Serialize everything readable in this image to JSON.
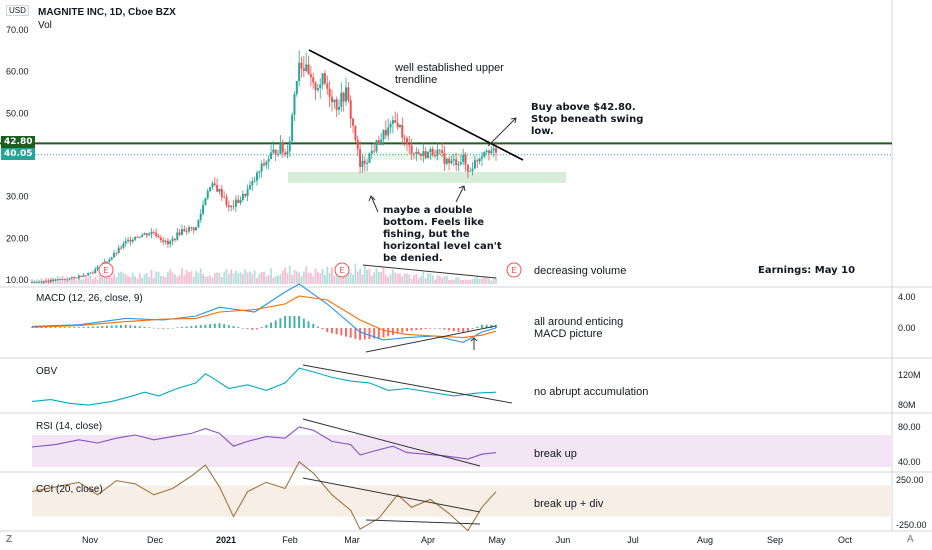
{
  "header": {
    "currency": "USD",
    "symbol": "MAGNITE INC, 1D, Cboe BZX",
    "vol_label": "Vol"
  },
  "price_tags": [
    {
      "value": "42.80",
      "color": "#1b5e20"
    },
    {
      "value": "40.05",
      "color": "#26a69a"
    }
  ],
  "annotations": {
    "trendline": "well established upper\ntrendline",
    "buy": "Buy above $42.80.\nStop beneath swing\nlow.",
    "double_bottom": "maybe a double\nbottom. Feels like\nfishing, but the\nhorizontal level can't\nbe denied.",
    "volume": "decreasing volume",
    "earnings": "Earnings: May 10",
    "macd": "all around enticing\nMACD picture",
    "obv": "no abrupt accumulation",
    "rsi": "break up",
    "cci": "break up + div"
  },
  "earnings_marker": "E",
  "footer": {
    "left_icon": "Z",
    "right_icon": "A"
  },
  "colors": {
    "up": "#26a69a",
    "down": "#ef5350",
    "level": "#1b5e20",
    "obv": "#00acc1",
    "macd_line": "#2196f3",
    "signal_line": "#ff6d00",
    "rsi_line": "#7e57c2",
    "rsi_band": "#f3e5f5",
    "cci_line": "#a1753f",
    "cci_band": "#f7efe6",
    "support_zone": "#c8e6c9"
  },
  "chart_data": {
    "type": "candlestick",
    "title": "MAGNITE INC, 1D, Cboe BZX",
    "x_ticks": [
      "Nov",
      "Dec",
      "2021",
      "Feb",
      "Mar",
      "Apr",
      "May",
      "Jun",
      "Jul",
      "Aug",
      "Sep",
      "Oct"
    ],
    "earnings_dates": [
      "Nov",
      "Feb",
      "May"
    ],
    "price_axis": {
      "ticks": [
        10,
        20,
        30,
        40,
        50,
        60,
        70
      ],
      "range": [
        8,
        72
      ]
    },
    "horizontal_level": 42.8,
    "last_price": 40.05,
    "price_path": [
      [
        0,
        9.5
      ],
      [
        8,
        9.8
      ],
      [
        18,
        10.5
      ],
      [
        26,
        12
      ],
      [
        34,
        15.5
      ],
      [
        40,
        19
      ],
      [
        44,
        20.5
      ],
      [
        52,
        21.5
      ],
      [
        58,
        18.5
      ],
      [
        64,
        22
      ],
      [
        70,
        22.5
      ],
      [
        72,
        26
      ],
      [
        75,
        32
      ],
      [
        78,
        32.5
      ],
      [
        82,
        30
      ],
      [
        84,
        27
      ],
      [
        90,
        30
      ],
      [
        94,
        33
      ],
      [
        98,
        37
      ],
      [
        102,
        40
      ],
      [
        106,
        42
      ],
      [
        108,
        40
      ],
      [
        110,
        44
      ],
      [
        112,
        55
      ],
      [
        114,
        63
      ],
      [
        117,
        60
      ],
      [
        120,
        56
      ],
      [
        124,
        58
      ],
      [
        130,
        52
      ],
      [
        134,
        55
      ],
      [
        138,
        44
      ],
      [
        140,
        37
      ],
      [
        144,
        40
      ],
      [
        150,
        45
      ],
      [
        156,
        48
      ],
      [
        160,
        42
      ],
      [
        166,
        40
      ],
      [
        172,
        41
      ],
      [
        178,
        38
      ],
      [
        184,
        39
      ],
      [
        186,
        36
      ],
      [
        190,
        39
      ],
      [
        194,
        42
      ],
      [
        198,
        40.05
      ]
    ],
    "volume_path": [
      [
        0,
        1.2
      ],
      [
        20,
        1.5
      ],
      [
        40,
        2.2
      ],
      [
        56,
        2.6
      ],
      [
        70,
        3.2
      ],
      [
        80,
        2.6
      ],
      [
        95,
        2.4
      ],
      [
        105,
        2.7
      ],
      [
        112,
        3.4
      ],
      [
        120,
        2.8
      ],
      [
        140,
        3.5
      ],
      [
        160,
        2.3
      ],
      [
        180,
        1.6
      ],
      [
        198,
        1.3
      ]
    ],
    "macd": {
      "name": "MACD (12, 26, close, 9)",
      "axis_ticks": [
        "4.00",
        "0.00"
      ],
      "macd_path": [
        [
          0,
          0.2
        ],
        [
          20,
          0.4
        ],
        [
          40,
          1.2
        ],
        [
          56,
          1.0
        ],
        [
          70,
          1.5
        ],
        [
          80,
          2.6
        ],
        [
          95,
          2.0
        ],
        [
          108,
          4.5
        ],
        [
          114,
          5.5
        ],
        [
          126,
          3.0
        ],
        [
          140,
          -0.5
        ],
        [
          150,
          -1.5
        ],
        [
          160,
          -1.2
        ],
        [
          172,
          -1.0
        ],
        [
          184,
          -1.8
        ],
        [
          192,
          -0.5
        ],
        [
          198,
          0.0
        ]
      ],
      "signal_path": [
        [
          0,
          0.1
        ],
        [
          20,
          0.3
        ],
        [
          40,
          0.8
        ],
        [
          56,
          1.1
        ],
        [
          70,
          1.2
        ],
        [
          80,
          2.0
        ],
        [
          95,
          2.3
        ],
        [
          108,
          3.0
        ],
        [
          114,
          4.0
        ],
        [
          126,
          3.5
        ],
        [
          140,
          1.0
        ],
        [
          150,
          -0.3
        ],
        [
          160,
          -0.8
        ],
        [
          172,
          -1.0
        ],
        [
          184,
          -1.2
        ],
        [
          192,
          -0.9
        ],
        [
          198,
          -0.4
        ]
      ]
    },
    "obv": {
      "name": "OBV",
      "axis_ticks": [
        "120M",
        "80M"
      ],
      "path": [
        [
          0,
          86
        ],
        [
          8,
          88
        ],
        [
          16,
          84
        ],
        [
          24,
          82
        ],
        [
          34,
          86
        ],
        [
          40,
          90
        ],
        [
          48,
          96
        ],
        [
          54,
          92
        ],
        [
          62,
          100
        ],
        [
          70,
          106
        ],
        [
          74,
          116
        ],
        [
          78,
          110
        ],
        [
          84,
          100
        ],
        [
          92,
          104
        ],
        [
          100,
          98
        ],
        [
          108,
          106
        ],
        [
          114,
          122
        ],
        [
          120,
          118
        ],
        [
          128,
          112
        ],
        [
          136,
          108
        ],
        [
          144,
          106
        ],
        [
          152,
          98
        ],
        [
          160,
          100
        ],
        [
          170,
          96
        ],
        [
          180,
          92
        ],
        [
          190,
          95
        ],
        [
          198,
          96
        ]
      ]
    },
    "rsi": {
      "name": "RSI (14, close)",
      "axis_ticks": [
        "80.00",
        "40.00"
      ],
      "band": [
        30,
        70
      ],
      "path": [
        [
          0,
          55
        ],
        [
          10,
          58
        ],
        [
          20,
          64
        ],
        [
          28,
          60
        ],
        [
          36,
          66
        ],
        [
          44,
          70
        ],
        [
          52,
          64
        ],
        [
          60,
          68
        ],
        [
          68,
          72
        ],
        [
          74,
          78
        ],
        [
          80,
          72
        ],
        [
          86,
          56
        ],
        [
          92,
          62
        ],
        [
          100,
          68
        ],
        [
          108,
          66
        ],
        [
          114,
          80
        ],
        [
          120,
          76
        ],
        [
          128,
          62
        ],
        [
          136,
          58
        ],
        [
          140,
          45
        ],
        [
          146,
          50
        ],
        [
          154,
          56
        ],
        [
          160,
          48
        ],
        [
          168,
          46
        ],
        [
          176,
          44
        ],
        [
          186,
          40
        ],
        [
          192,
          46
        ],
        [
          198,
          48
        ]
      ]
    },
    "cci": {
      "name": "CCI (20, close)",
      "axis_ticks": [
        "250.00",
        "-250.00"
      ],
      "band": [
        -100,
        100
      ],
      "path": [
        [
          0,
          60
        ],
        [
          10,
          90
        ],
        [
          20,
          120
        ],
        [
          28,
          40
        ],
        [
          36,
          130
        ],
        [
          44,
          110
        ],
        [
          52,
          40
        ],
        [
          60,
          80
        ],
        [
          68,
          160
        ],
        [
          74,
          230
        ],
        [
          80,
          90
        ],
        [
          86,
          -100
        ],
        [
          92,
          60
        ],
        [
          100,
          120
        ],
        [
          108,
          80
        ],
        [
          114,
          250
        ],
        [
          120,
          180
        ],
        [
          128,
          40
        ],
        [
          136,
          -60
        ],
        [
          140,
          -180
        ],
        [
          148,
          -110
        ],
        [
          156,
          40
        ],
        [
          162,
          -40
        ],
        [
          170,
          10
        ],
        [
          178,
          -80
        ],
        [
          186,
          -190
        ],
        [
          192,
          -40
        ],
        [
          198,
          60
        ]
      ]
    }
  }
}
